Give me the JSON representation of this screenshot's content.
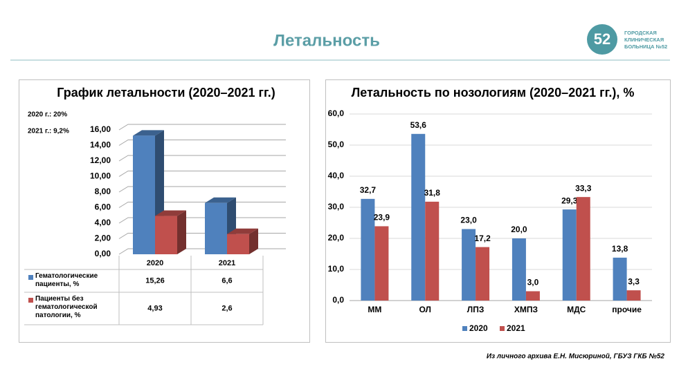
{
  "title": "Летальность",
  "logo": {
    "mark": "52",
    "lines": [
      "ГОРОДСКАЯ",
      "КЛИНИЧЕСКАЯ",
      "БОЛЬНИЦА №52"
    ]
  },
  "footer": "Из личного архива Е.Н. Мисюриной, ГБУЗ ГКБ №52",
  "chart_data": [
    {
      "type": "bar",
      "three_d": true,
      "data_table": true,
      "title": "График летальности (2020–2021 гг.)",
      "notes": [
        "2020 г.: 20%",
        "2021 г.: 9,2%"
      ],
      "categories": [
        "2020",
        "2021"
      ],
      "series": [
        {
          "name": "Гематологические пациенты, %",
          "color": "#4f81bd",
          "values": [
            15.26,
            6.6
          ],
          "value_labels": [
            "15,26",
            "6,6"
          ]
        },
        {
          "name": "Пациенты без гематологической патологии, %",
          "color": "#c0504d",
          "values": [
            4.93,
            2.6
          ],
          "value_labels": [
            "4,93",
            "2,6"
          ]
        }
      ],
      "ylim": [
        0,
        16
      ],
      "yticks": [
        {
          "value": 0,
          "label": "0,00"
        },
        {
          "value": 2,
          "label": "2,00"
        },
        {
          "value": 4,
          "label": "4,00"
        },
        {
          "value": 6,
          "label": "6,00"
        },
        {
          "value": 8,
          "label": "8,00"
        },
        {
          "value": 10,
          "label": "10,00"
        },
        {
          "value": 12,
          "label": "12,00"
        },
        {
          "value": 14,
          "label": "14,00"
        },
        {
          "value": 16,
          "label": "16,00"
        }
      ],
      "grid": true
    },
    {
      "type": "bar",
      "three_d": false,
      "data_table": false,
      "title": "Летальность по нозологиям (2020–2021 гг.), %",
      "categories": [
        "ММ",
        "ОЛ",
        "ЛПЗ",
        "ХМПЗ",
        "МДС",
        "прочие"
      ],
      "series": [
        {
          "name": "2020",
          "color": "#4f81bd",
          "values": [
            32.7,
            53.6,
            23.0,
            20.0,
            29.3,
            13.8
          ],
          "value_labels": [
            "32,7",
            "53,6",
            "23,0",
            "20,0",
            "29,3",
            "13,8"
          ]
        },
        {
          "name": "2021",
          "color": "#c0504d",
          "values": [
            23.9,
            31.8,
            17.2,
            3.0,
            33.3,
            3.3
          ],
          "value_labels": [
            "23,9",
            "31,8",
            "17,2",
            "3,0",
            "33,3",
            "3,3"
          ]
        }
      ],
      "ylim": [
        0,
        60
      ],
      "yticks": [
        {
          "value": 0,
          "label": "0,0"
        },
        {
          "value": 10,
          "label": "10,0"
        },
        {
          "value": 20,
          "label": "20,0"
        },
        {
          "value": 30,
          "label": "30,0"
        },
        {
          "value": 40,
          "label": "40,0"
        },
        {
          "value": 50,
          "label": "50,0"
        },
        {
          "value": 60,
          "label": "60,0"
        }
      ],
      "grid": true,
      "legend": "bottom"
    }
  ]
}
